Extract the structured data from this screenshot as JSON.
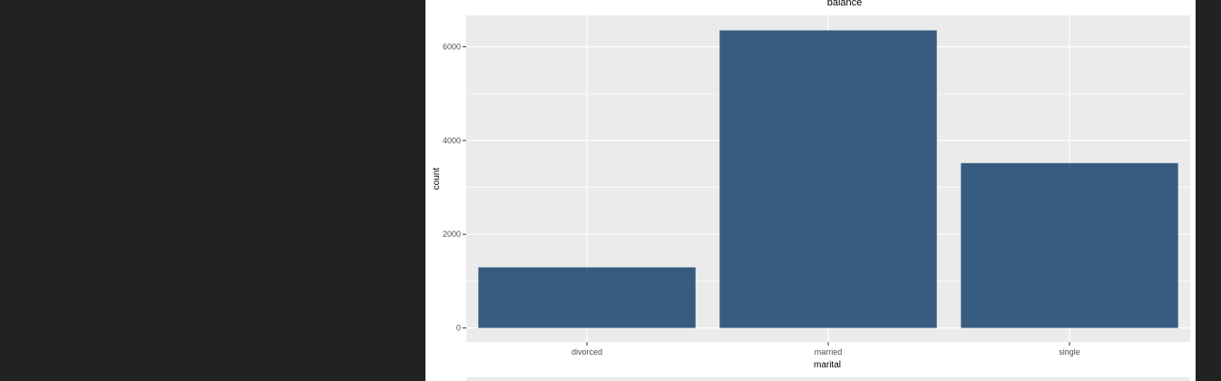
{
  "chart_data": {
    "type": "bar",
    "title": "balance",
    "xlabel": "marital",
    "ylabel": "count",
    "categories": [
      "divorced",
      "married",
      "single"
    ],
    "values": [
      1293,
      6351,
      3518
    ],
    "ylim": [
      -300,
      6670
    ],
    "yticks": [
      0,
      2000,
      4000,
      6000
    ],
    "ytick_labels": [
      "0",
      "2000",
      "4000",
      "6000"
    ],
    "grid": true,
    "legend": "none",
    "colors": {
      "bar": "#385c80",
      "panel_bg": "#ebebeb",
      "grid": "#ffffff"
    }
  }
}
